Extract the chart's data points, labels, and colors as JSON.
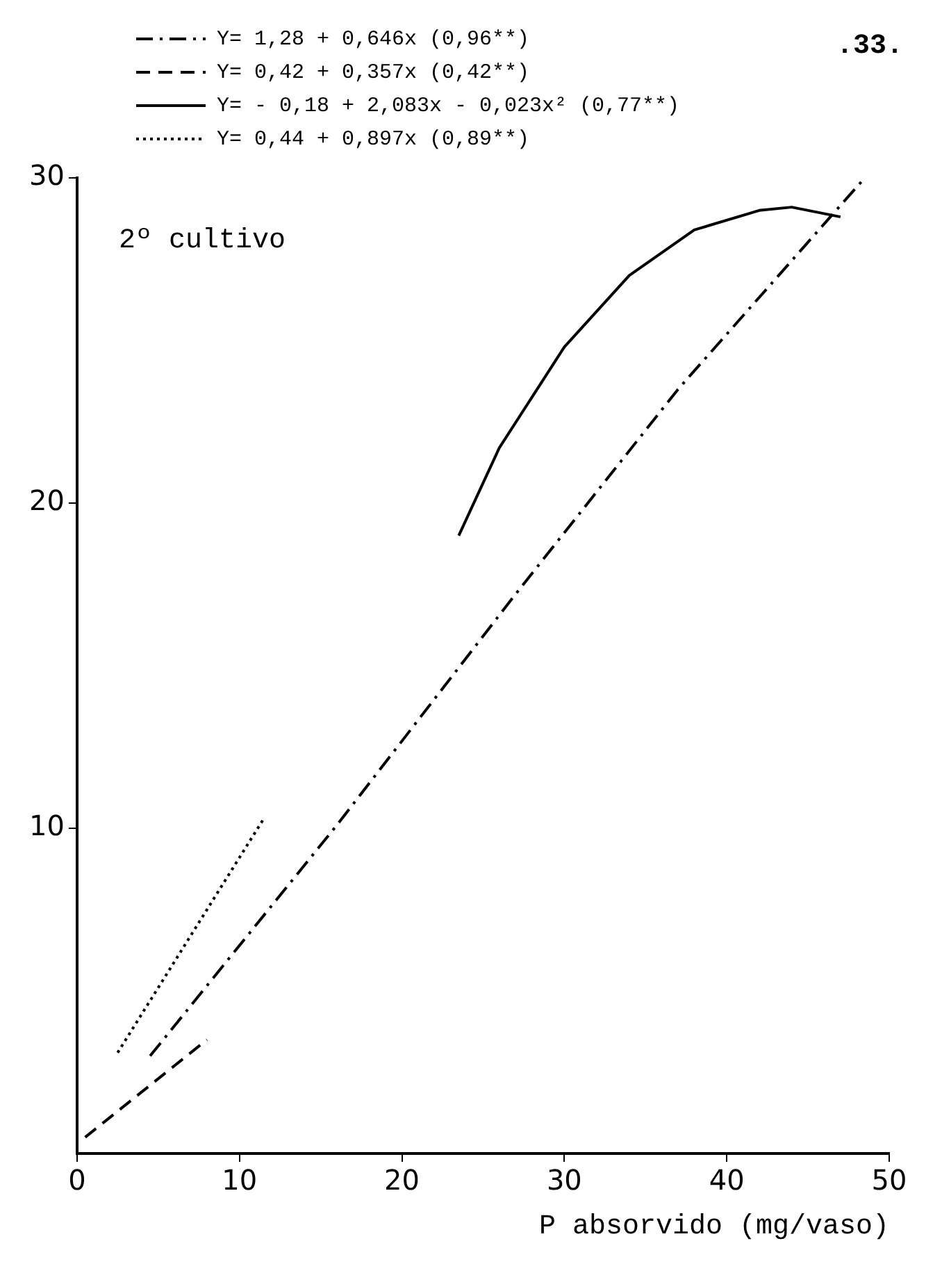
{
  "chart_data": {
    "type": "line",
    "xlabel": "P absorvido (mg/vaso)",
    "annotations": [
      "2º cultivo",
      ".33."
    ],
    "xlim": [
      0,
      50
    ],
    "xticks": [
      0,
      10,
      20,
      30,
      40,
      50
    ],
    "ylim": [
      0,
      30
    ],
    "yticks": [
      10,
      20,
      30
    ],
    "grid": false,
    "legend": "top left",
    "marker": "none",
    "series": [
      {
        "name": "Y= 1,28 + 0,646x (0,96**)",
        "color": "#000000",
        "line_style": "dashdot",
        "x": [
          4.5,
          16,
          27,
          37,
          48.5
        ],
        "values": [
          3,
          10.1,
          17.2,
          23.5,
          30
        ]
      },
      {
        "name": "Y= 0,42 + 0,357x (0,42**)",
        "color": "#000000",
        "line_style": "dashed",
        "x": [
          0.5,
          8
        ],
        "values": [
          0.5,
          3.5
        ]
      },
      {
        "name": "Y= - 0,18 + 2,083x - 0,023x² (0,77**)",
        "color": "#000000",
        "line_style": "solid",
        "x": [
          23.5,
          26,
          30,
          34,
          38,
          42,
          44,
          47
        ],
        "values": [
          19,
          21.7,
          24.8,
          27,
          28.4,
          29,
          29.1,
          28.8
        ]
      },
      {
        "name": "Y= 0,44 + 0,897x (0,89**)",
        "color": "#000000",
        "line_style": "dotted",
        "x": [
          2.5,
          11.5
        ],
        "values": [
          3.1,
          10.3
        ]
      }
    ]
  }
}
